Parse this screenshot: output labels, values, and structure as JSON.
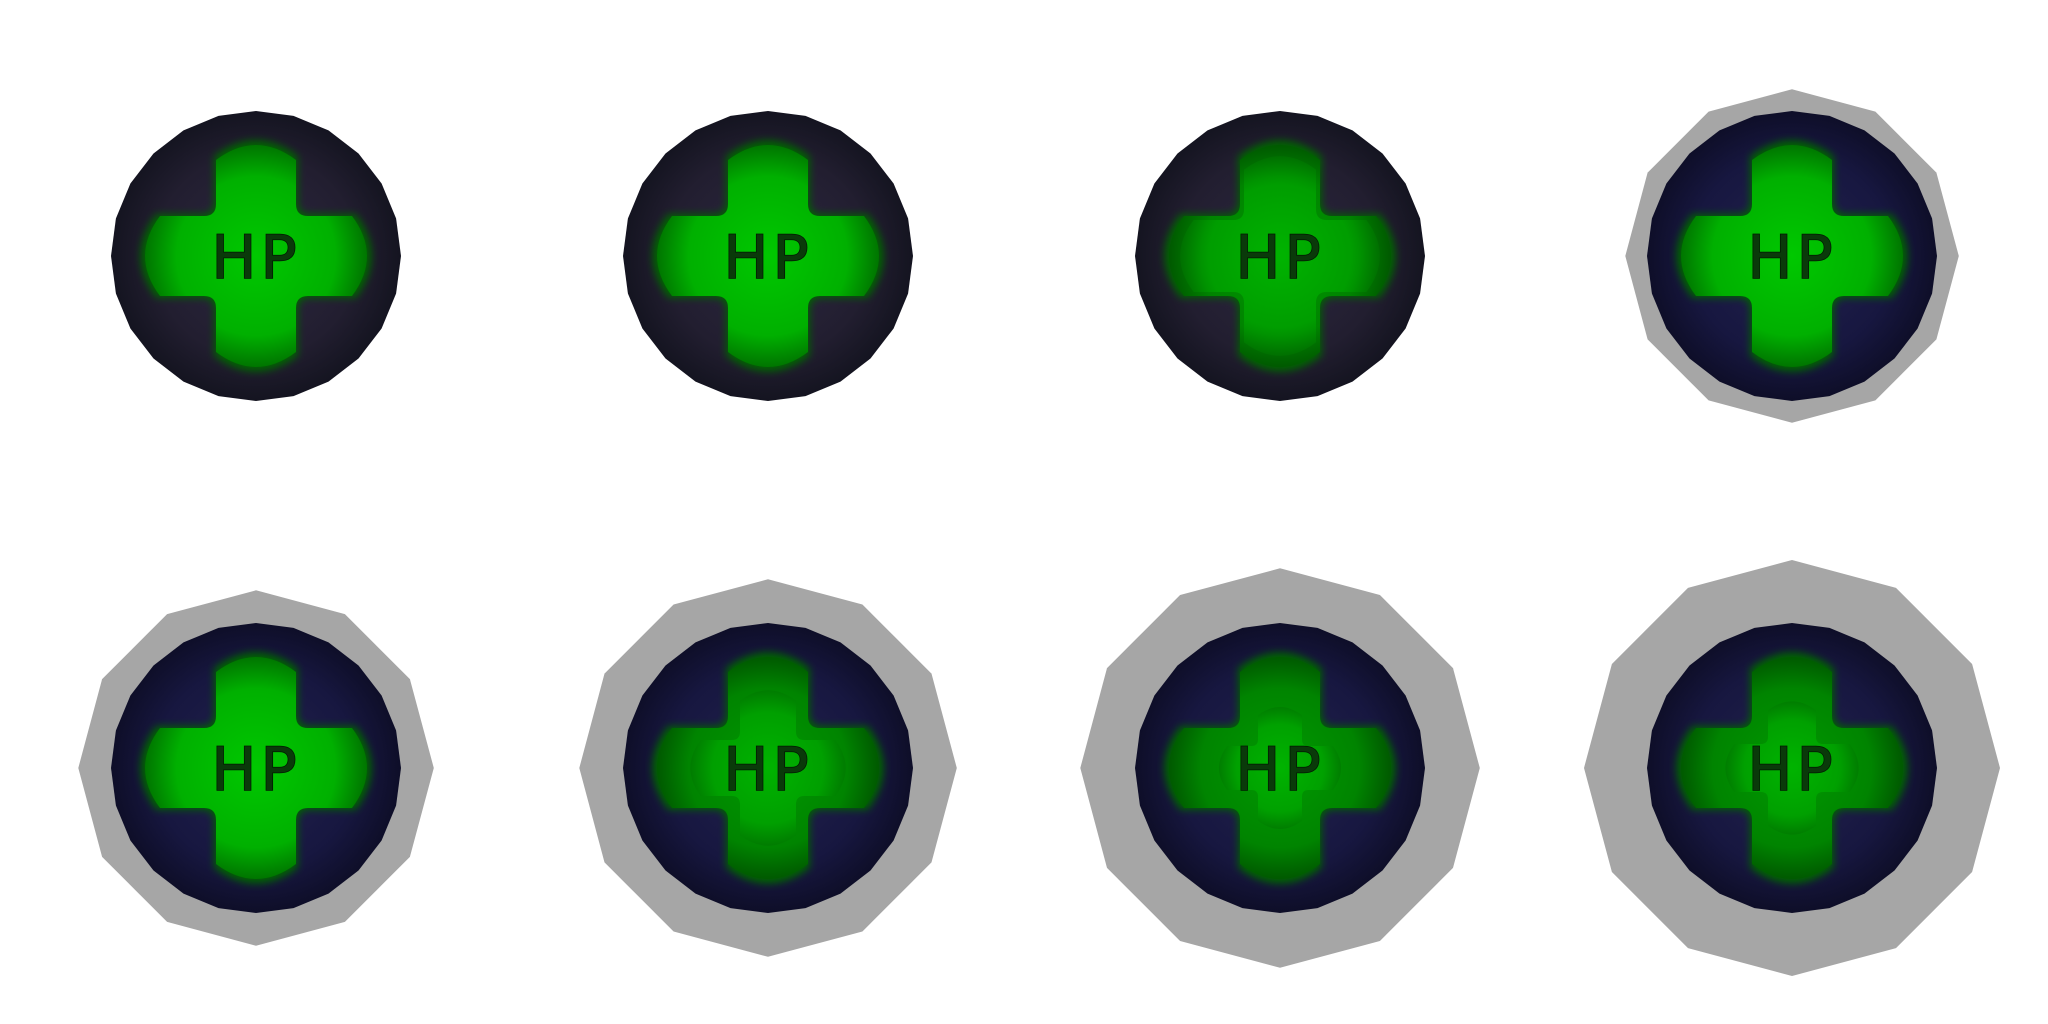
{
  "sprite_sheet": {
    "label": "HP",
    "colors": {
      "background": "#ffffff",
      "orb_dark": "#1a1a2a",
      "orb_dark_blue": "#141436",
      "orb_green": "#00b400",
      "cross_shadow": "#006400",
      "glow": "#a6a6a6"
    },
    "frames": [
      {
        "label": "HP",
        "glow": 0,
        "fill_level": 1.0,
        "tint": "dark"
      },
      {
        "label": "HP",
        "glow": 0,
        "fill_level": 1.0,
        "tint": "dark"
      },
      {
        "label": "HP",
        "glow": 0,
        "fill_level": 0.9,
        "tint": "dark"
      },
      {
        "label": "HP",
        "glow": 0.25,
        "fill_level": 1.0,
        "tint": "blue"
      },
      {
        "label": "HP",
        "glow": 0.45,
        "fill_level": 1.0,
        "tint": "blue"
      },
      {
        "label": "HP",
        "glow": 0.65,
        "fill_level": 0.7,
        "tint": "blue"
      },
      {
        "label": "HP",
        "glow": 0.85,
        "fill_level": 0.55,
        "tint": "blue"
      },
      {
        "label": "HP",
        "glow": 1.0,
        "fill_level": 0.6,
        "tint": "blue"
      }
    ]
  }
}
